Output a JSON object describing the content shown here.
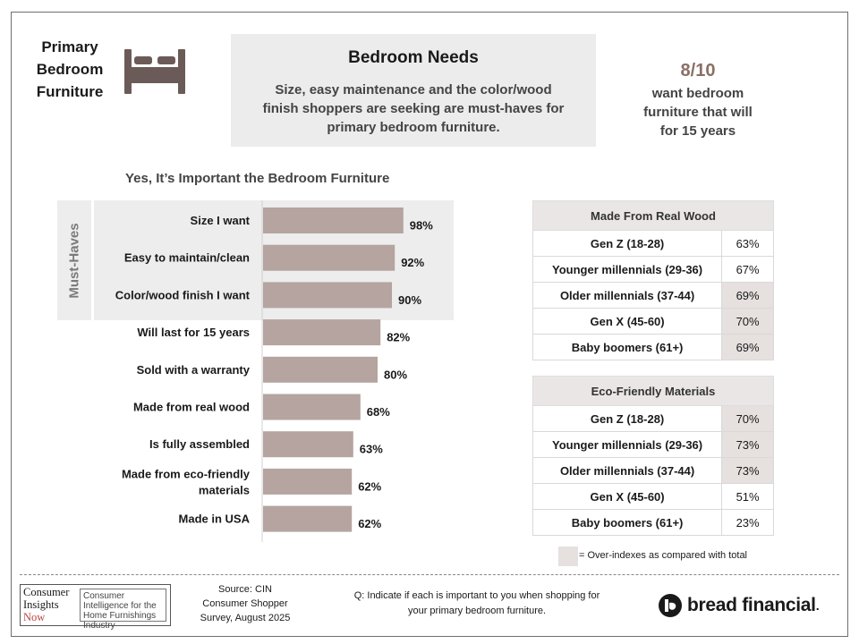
{
  "header": {
    "section_title_lines": [
      "Primary",
      "Bedroom",
      "Furniture"
    ],
    "icon": "bed-icon",
    "needs_title": "Bedroom Needs",
    "needs_subtitle": "Size, easy maintenance and the color/wood finish shoppers are seeking are must-haves for primary bedroom furniture.",
    "stat_number": "8/10",
    "stat_text": "want bedroom furniture that will for 15 years"
  },
  "chart_data": {
    "type": "bar",
    "orientation": "horizontal",
    "title": "Yes, It’s Important the Bedroom Furniture",
    "group_label": "Must-Haves",
    "group_count": 3,
    "categories": [
      "Size I want",
      "Easy to maintain/clean",
      "Color/wood finish I want",
      "Will last for 15 years",
      "Sold with a warranty",
      "Made from real wood",
      "Is fully assembled",
      "Made from eco-friendly materials",
      "Made in USA"
    ],
    "values": [
      98,
      92,
      90,
      82,
      80,
      68,
      63,
      62,
      62
    ],
    "value_suffix": "%",
    "xlim": [
      0,
      100
    ],
    "bar_color": "#b5a49f",
    "band_color": "#ededed"
  },
  "tables": [
    {
      "title": "Made From Real Wood",
      "rows": [
        {
          "label": "Gen Z (18-28)",
          "value": "63%",
          "over_index": false
        },
        {
          "label": "Younger millennials (29-36)",
          "value": "67%",
          "over_index": false
        },
        {
          "label": "Older millennials (37-44)",
          "value": "69%",
          "over_index": true
        },
        {
          "label": "Gen X (45-60)",
          "value": "70%",
          "over_index": true
        },
        {
          "label": "Baby boomers (61+)",
          "value": "69%",
          "over_index": true
        }
      ]
    },
    {
      "title": "Eco-Friendly Materials",
      "rows": [
        {
          "label": "Gen Z (18-28)",
          "value": "70%",
          "over_index": true
        },
        {
          "label": "Younger millennials (29-36)",
          "value": "73%",
          "over_index": true
        },
        {
          "label": "Older millennials (37-44)",
          "value": "73%",
          "over_index": true
        },
        {
          "label": "Gen X (45-60)",
          "value": "51%",
          "over_index": false
        },
        {
          "label": "Baby boomers (61+)",
          "value": "23%",
          "over_index": false
        }
      ]
    }
  ],
  "legend": {
    "text": "= Over-indexes as compared with total",
    "swatch_color": "#e6e0df"
  },
  "footer": {
    "cin_logo_lines": [
      "Consumer",
      "Insights",
      "Now"
    ],
    "cin_tagline": "Consumer Intelligence for the Home Furnishings Industry",
    "source_lines": [
      "Source: CIN",
      "Consumer Shopper",
      "Survey, August 2025"
    ],
    "question": "Q:  Indicate if each is important to you when shopping for your primary bedroom furniture.",
    "brand_name": "bread financial",
    "brand_suffix": "."
  }
}
